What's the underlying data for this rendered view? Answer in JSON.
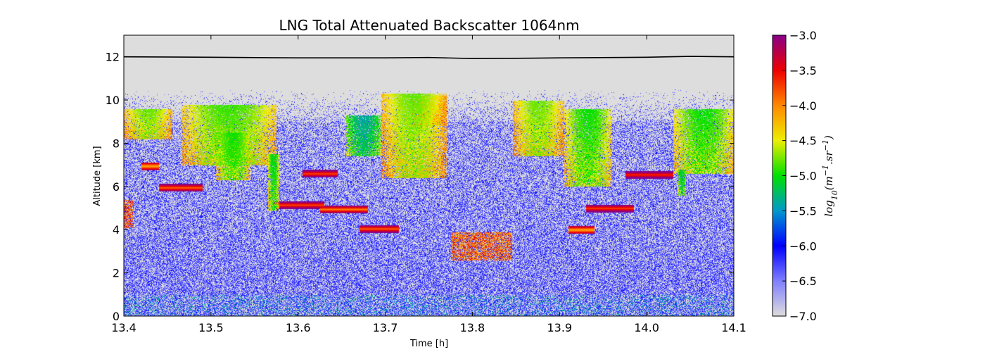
{
  "chart_data": {
    "type": "heatmap",
    "title": "LNG Total Attenuated Backscatter 1064nm",
    "xlabel": "Time [h]",
    "ylabel": "Altitude [km]",
    "xlim": [
      13.4,
      14.1
    ],
    "ylim": [
      0,
      13
    ],
    "xticks": [
      13.4,
      13.5,
      13.6,
      13.7,
      13.8,
      13.9,
      14.0,
      14.1
    ],
    "xtick_labels": [
      "13.4",
      "13.5",
      "13.6",
      "13.7",
      "13.8",
      "13.9",
      "14.0",
      "14.1"
    ],
    "yticks": [
      0,
      2,
      4,
      6,
      8,
      10,
      12
    ],
    "ytick_labels": [
      "0",
      "2",
      "4",
      "6",
      "8",
      "10",
      "12"
    ],
    "colorbar": {
      "label": "log10(m^-1.sr^-1)",
      "range": [
        -7.0,
        -3.0
      ],
      "ticks": [
        -3.0,
        -3.5,
        -4.0,
        -4.5,
        -5.0,
        -5.5,
        -6.0,
        -6.5,
        -7.0
      ],
      "tick_labels": [
        "−3.0",
        "−3.5",
        "−4.0",
        "−4.5",
        "−5.0",
        "−5.5",
        "−6.0",
        "−6.5",
        "−7.0"
      ],
      "colormap": "nipy_spectral-like",
      "stops": [
        {
          "v": -7.0,
          "c": "#dddddd"
        },
        {
          "v": -6.5,
          "c": "#7f7fff"
        },
        {
          "v": -6.0,
          "c": "#0000ff"
        },
        {
          "v": -5.5,
          "c": "#0099cc"
        },
        {
          "v": -5.0,
          "c": "#00e000"
        },
        {
          "v": -4.5,
          "c": "#eeee00"
        },
        {
          "v": -4.0,
          "c": "#ff8800"
        },
        {
          "v": -3.5,
          "c": "#ee0000"
        },
        {
          "v": -3.0,
          "c": "#880088"
        }
      ]
    },
    "aircraft_altitude_line": {
      "color": "#000000",
      "x": [
        13.4,
        13.5,
        13.6,
        13.7,
        13.75,
        13.8,
        13.85,
        13.9,
        14.0,
        14.05,
        14.1
      ],
      "y": [
        12.0,
        11.98,
        11.95,
        11.95,
        11.97,
        11.92,
        11.93,
        11.95,
        11.98,
        12.02,
        12.0
      ]
    },
    "signal_top_km": 10.5,
    "cloud_layers": [
      {
        "x0": 13.4,
        "x1": 13.455,
        "y0": 8.2,
        "y1": 9.6,
        "v": -4.8
      },
      {
        "x0": 13.466,
        "x1": 13.575,
        "y0": 7.0,
        "y1": 9.8,
        "v": -4.9
      },
      {
        "x0": 13.505,
        "x1": 13.545,
        "y0": 6.3,
        "y1": 8.5,
        "v": -5.0
      },
      {
        "x0": 13.565,
        "x1": 13.578,
        "y0": 4.9,
        "y1": 7.5,
        "v": -5.1
      },
      {
        "x0": 13.655,
        "x1": 13.695,
        "y0": 7.4,
        "y1": 9.3,
        "v": -5.4
      },
      {
        "x0": 13.695,
        "x1": 13.77,
        "y0": 6.4,
        "y1": 10.3,
        "v": -4.8
      },
      {
        "x0": 13.73,
        "x1": 13.77,
        "y0": 8.8,
        "y1": 10.2,
        "v": -4.4
      },
      {
        "x0": 13.846,
        "x1": 13.905,
        "y0": 7.4,
        "y1": 10.0,
        "v": -4.8
      },
      {
        "x0": 13.905,
        "x1": 13.96,
        "y0": 6.0,
        "y1": 9.6,
        "v": -5.0
      },
      {
        "x0": 14.03,
        "x1": 14.1,
        "y0": 6.6,
        "y1": 9.6,
        "v": -5.0
      },
      {
        "x0": 14.035,
        "x1": 14.045,
        "y0": 5.6,
        "y1": 6.8,
        "v": -5.2
      }
    ],
    "thin_layers": [
      {
        "x0": 13.42,
        "x1": 13.44,
        "y": 6.95,
        "v": -4.2
      },
      {
        "x0": 13.44,
        "x1": 13.49,
        "y": 5.95,
        "v": -3.9
      },
      {
        "x0": 13.57,
        "x1": 13.63,
        "y": 5.15,
        "v": -3.8
      },
      {
        "x0": 13.625,
        "x1": 13.68,
        "y": 4.95,
        "v": -4.0
      },
      {
        "x0": 13.605,
        "x1": 13.645,
        "y": 6.6,
        "v": -3.8
      },
      {
        "x0": 13.67,
        "x1": 13.715,
        "y": 4.05,
        "v": -3.9
      },
      {
        "x0": 13.93,
        "x1": 13.985,
        "y": 5.0,
        "v": -3.8
      },
      {
        "x0": 13.975,
        "x1": 14.03,
        "y": 6.55,
        "v": -3.7
      },
      {
        "x0": 13.91,
        "x1": 13.94,
        "y": 4.0,
        "v": -4.2
      }
    ],
    "low_patches": [
      {
        "x0": 13.4,
        "x1": 13.41,
        "y0": 4.1,
        "y1": 5.4,
        "v": -4.2
      },
      {
        "x0": 13.775,
        "x1": 13.845,
        "y0": 2.6,
        "y1": 3.9,
        "v": -4.3
      }
    ]
  }
}
